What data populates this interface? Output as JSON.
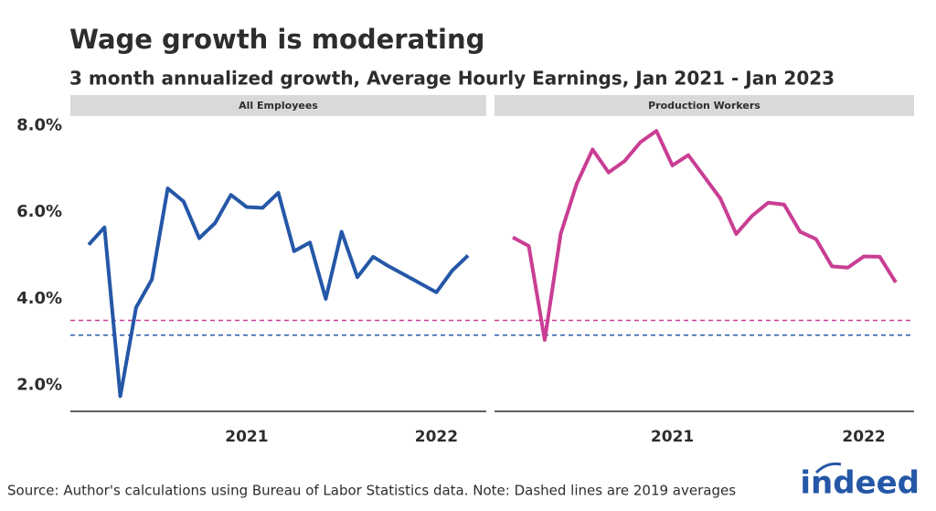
{
  "title": "Wage growth is moderating",
  "subtitle": "3 month annualized growth, Average Hourly Earnings, Jan 2021 - Jan 2023",
  "source": "Source: Author's calculations using Bureau of Labor Statistics data. Note: Dashed lines are 2019 averages",
  "logo": "indeed",
  "chart_data": [
    {
      "type": "line",
      "title": "All Employees",
      "categories": [
        null,
        null,
        null,
        null,
        null,
        null,
        null,
        null,
        null,
        null,
        "2021",
        null,
        null,
        null,
        null,
        null,
        null,
        null,
        null,
        null,
        null,
        null,
        "2022",
        null,
        null
      ],
      "series": [
        {
          "name": "All Employees",
          "color": "#2557a7",
          "values": [
            5.25,
            5.65,
            1.75,
            3.8,
            4.45,
            6.55,
            6.25,
            5.4,
            5.75,
            6.4,
            6.12,
            6.1,
            6.45,
            5.1,
            5.3,
            4.0,
            5.55,
            4.5,
            4.97,
            4.75,
            4.55,
            4.35,
            4.15,
            4.65,
            5.0
          ]
        }
      ],
      "reference_lines": [
        {
          "value": 3.5,
          "color": "#c93e94"
        },
        {
          "value": 3.16,
          "color": "#2557a7"
        }
      ],
      "ylim": [
        1.4,
        8.2
      ],
      "yticks": [
        {
          "value": 2,
          "label": "2.0%"
        },
        {
          "value": 4,
          "label": "4.0%"
        },
        {
          "value": 6,
          "label": "6.0%"
        },
        {
          "value": 8,
          "label": "8.0%"
        }
      ]
    },
    {
      "type": "line",
      "title": "Production Workers",
      "categories": [
        null,
        null,
        null,
        null,
        null,
        null,
        null,
        null,
        null,
        null,
        "2021",
        null,
        null,
        null,
        null,
        null,
        null,
        null,
        null,
        null,
        null,
        null,
        "2022",
        null,
        null
      ],
      "series": [
        {
          "name": "Production Workers",
          "color": "#c93e94",
          "values": [
            5.42,
            5.22,
            3.05,
            5.5,
            6.65,
            7.45,
            6.92,
            7.18,
            7.62,
            7.88,
            7.08,
            7.32,
            6.82,
            6.32,
            5.5,
            5.92,
            6.22,
            6.18,
            5.55,
            5.38,
            4.75,
            4.72,
            4.98,
            4.97,
            4.38
          ]
        }
      ],
      "reference_lines": [
        {
          "value": 3.5,
          "color": "#c93e94"
        },
        {
          "value": 3.16,
          "color": "#2557a7"
        }
      ],
      "ylim": [
        1.4,
        8.2
      ]
    }
  ]
}
